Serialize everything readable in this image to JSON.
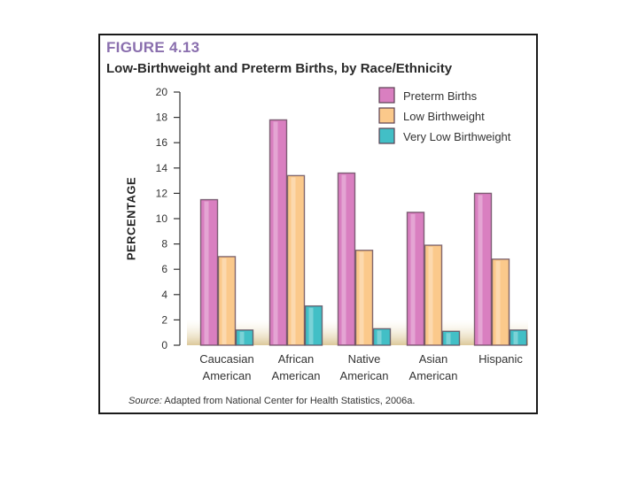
{
  "figure_label": "FIGURE 4.13",
  "chart_data": {
    "type": "bar",
    "title": "Low-Birthweight and Preterm Births, by Race/Ethnicity",
    "xlabel": "",
    "ylabel": "PERCENTAGE",
    "ylim": [
      0,
      20
    ],
    "yticks": [
      0,
      2,
      4,
      6,
      8,
      10,
      12,
      14,
      16,
      18,
      20
    ],
    "categories": [
      [
        "Caucasian",
        "American"
      ],
      [
        "African",
        "American"
      ],
      [
        "Native",
        "American"
      ],
      [
        "Asian",
        "American"
      ],
      [
        "Hispanic"
      ]
    ],
    "series": [
      {
        "name": "Preterm Births",
        "color": "#d97fc0",
        "values": [
          11.5,
          17.8,
          13.6,
          10.5,
          12.0
        ]
      },
      {
        "name": "Low Birthweight",
        "color": "#fbc98b",
        "values": [
          7.0,
          13.4,
          7.5,
          7.9,
          6.8
        ]
      },
      {
        "name": "Very Low Birthweight",
        "color": "#42bfc6",
        "values": [
          1.2,
          3.1,
          1.3,
          1.1,
          1.2
        ]
      }
    ],
    "legend_position": "top-right"
  },
  "source": {
    "lead": "Source:",
    "text": " Adapted from National Center for Health Statistics, 2006a."
  }
}
